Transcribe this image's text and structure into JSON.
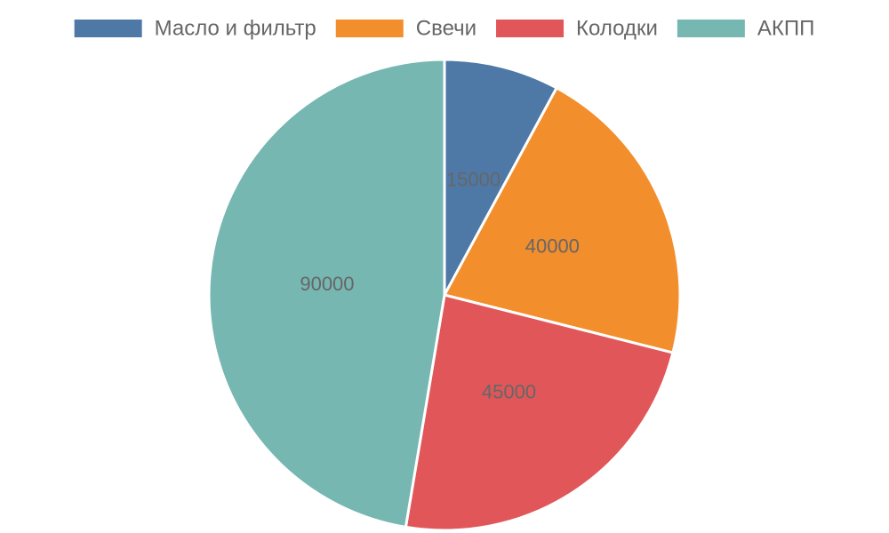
{
  "chart_data": {
    "type": "pie",
    "categories": [
      "Масло и фильтр",
      "Свечи",
      "Колодки",
      "АКПП"
    ],
    "values": [
      15000,
      40000,
      45000,
      90000
    ],
    "colors": [
      "#4e79a7",
      "#f28e2c",
      "#e15759",
      "#76b7b2"
    ],
    "legend": "top"
  }
}
